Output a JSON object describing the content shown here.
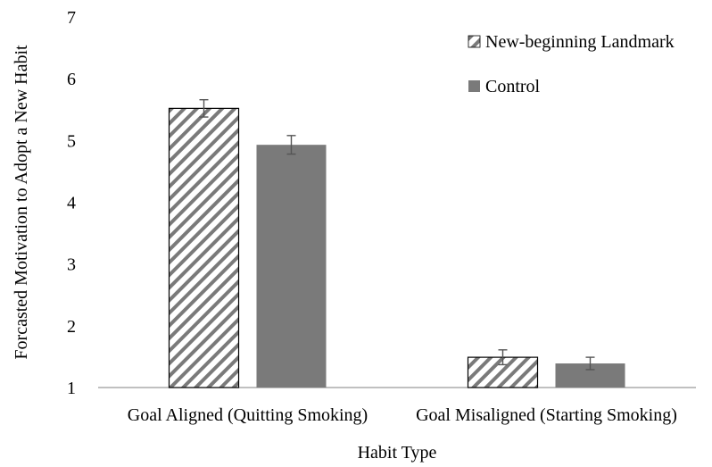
{
  "chart_data": {
    "type": "bar",
    "title": "",
    "xlabel": "Habit Type",
    "ylabel": "Forcasted Motivation to Adopt a New Habit",
    "ylim": [
      1,
      7
    ],
    "yticks": [
      1,
      2,
      3,
      4,
      5,
      6,
      7
    ],
    "grid": false,
    "legend_position": "top-right",
    "categories": [
      "Goal Aligned (Quitting Smoking)",
      "Goal Misaligned (Starting Smoking)"
    ],
    "series": [
      {
        "name": "New-beginning Landmark",
        "pattern": "diagonal-hatch",
        "color": "#7a7a7a",
        "values": [
          5.52,
          1.49
        ],
        "errors": [
          0.14,
          0.12
        ]
      },
      {
        "name": "Control",
        "pattern": "solid",
        "color": "#7a7a7a",
        "values": [
          4.93,
          1.39
        ],
        "errors": [
          0.15,
          0.1
        ]
      }
    ]
  }
}
